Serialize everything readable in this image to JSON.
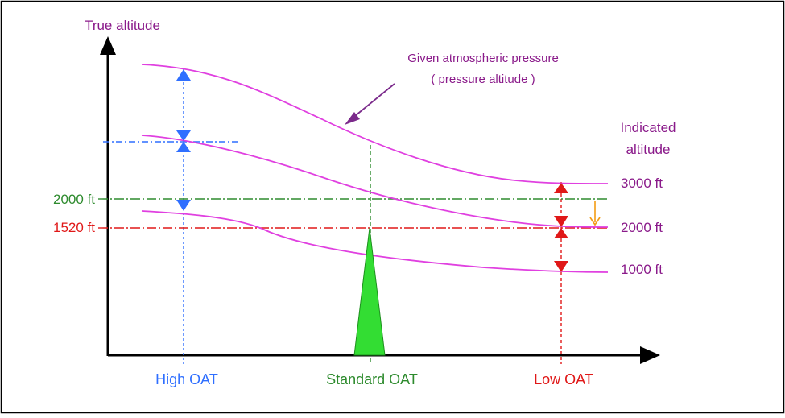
{
  "labels": {
    "y_axis": "True altitude",
    "isobar_line1": "Given atmospheric pressure",
    "isobar_line2": "( pressure altitude )",
    "indicated_line1": "Indicated",
    "indicated_line2": "altitude",
    "curve_3000": "3000 ft",
    "curve_2000": "2000 ft",
    "curve_1000": "1000 ft",
    "left_2000": "2000 ft",
    "left_1520": "1520 ft",
    "high_oat": "High OAT",
    "standard_oat": "Standard OAT",
    "low_oat": "Low OAT"
  },
  "colors": {
    "magenta": "#e040e0",
    "purple": "#8a1a8a",
    "blue": "#2f6fff",
    "green": "#2e8b2e",
    "red": "#e01818",
    "orange": "#f39c12",
    "fill_green": "#33dd33",
    "axis": "#000000"
  }
}
